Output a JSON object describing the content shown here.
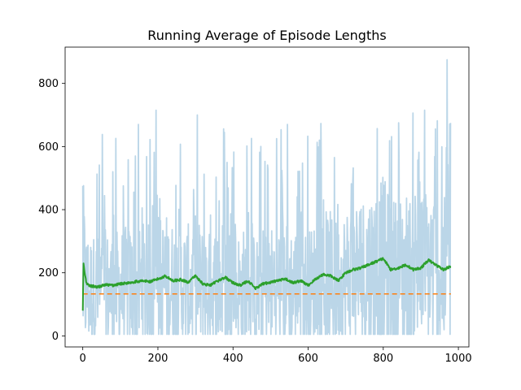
{
  "chart_data": {
    "type": "line",
    "title": "Running Average of Episode Lengths",
    "xlabel": "",
    "ylabel": "",
    "xlim": [
      -47,
      1028
    ],
    "ylim": [
      -35,
      915
    ],
    "xticks": [
      0,
      200,
      400,
      600,
      800,
      1000
    ],
    "yticks": [
      0,
      200,
      400,
      600,
      800
    ],
    "grid": false,
    "legend": "none",
    "series": [
      {
        "role": "episode_lengths",
        "color": "#1f77b4",
        "opacity": 0.3,
        "style": "solid",
        "x_start": 0,
        "x_step": 1,
        "n_points": 980,
        "min": 5,
        "max": 875,
        "notable_peaks": [
          {
            "x": 0,
            "y": 475
          },
          {
            "x": 80,
            "y": 520
          },
          {
            "x": 140,
            "y": 570
          },
          {
            "x": 195,
            "y": 715
          },
          {
            "x": 305,
            "y": 700
          },
          {
            "x": 545,
            "y": 670
          },
          {
            "x": 910,
            "y": 715
          },
          {
            "x": 970,
            "y": 875
          }
        ]
      },
      {
        "role": "baseline",
        "color": "#ff7f0e",
        "style": "dashed",
        "x": [
          0,
          980
        ],
        "y": [
          133,
          133
        ]
      },
      {
        "role": "running_average",
        "color": "#2ca02c",
        "style": "solid",
        "x": [
          0,
          2,
          5,
          10,
          20,
          40,
          60,
          80,
          100,
          120,
          140,
          160,
          180,
          200,
          220,
          240,
          260,
          280,
          300,
          320,
          340,
          360,
          380,
          400,
          420,
          440,
          460,
          480,
          500,
          520,
          540,
          560,
          580,
          600,
          620,
          640,
          660,
          680,
          700,
          720,
          740,
          760,
          780,
          800,
          820,
          840,
          860,
          880,
          900,
          920,
          940,
          960,
          980
        ],
        "y": [
          80,
          230,
          200,
          165,
          158,
          155,
          162,
          160,
          165,
          168,
          172,
          174,
          172,
          180,
          190,
          175,
          178,
          170,
          190,
          165,
          160,
          175,
          185,
          168,
          160,
          175,
          150,
          165,
          170,
          175,
          180,
          168,
          175,
          160,
          180,
          195,
          190,
          175,
          200,
          210,
          215,
          225,
          235,
          245,
          210,
          215,
          225,
          210,
          215,
          240,
          225,
          210,
          220
        ]
      }
    ]
  }
}
